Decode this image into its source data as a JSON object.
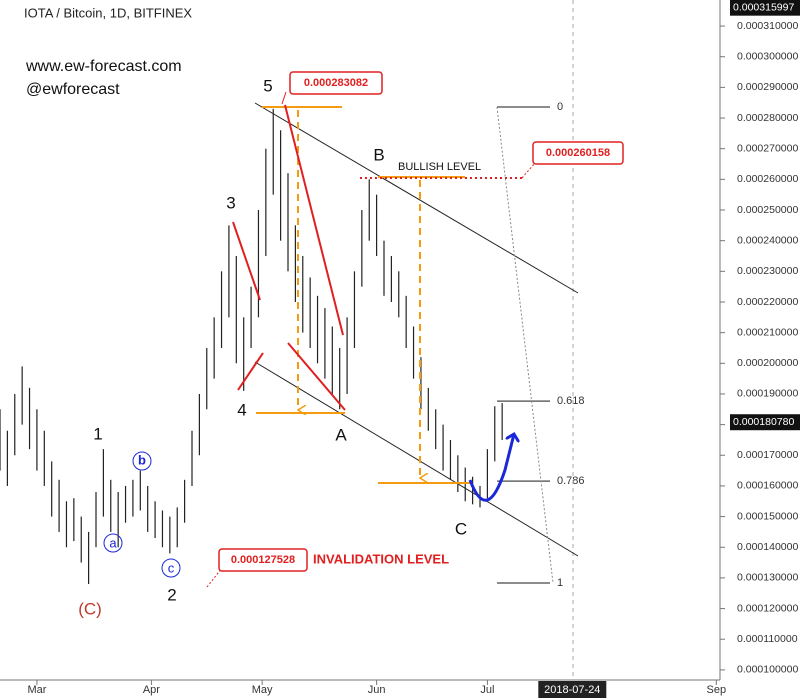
{
  "chart_data": {
    "type": "ohlc",
    "title": "IOTA / Bitcoin, 1D, BITFINEX",
    "x": [
      -10,
      -8,
      -6,
      -4,
      -2,
      0,
      2,
      4,
      6,
      8,
      10,
      12,
      14,
      16,
      18,
      20,
      22,
      24,
      26,
      28,
      30,
      32,
      34,
      36,
      38,
      40,
      42,
      44,
      46,
      48,
      50,
      52,
      54,
      56,
      58,
      60,
      62,
      64,
      66,
      68,
      70,
      72,
      74,
      76,
      78,
      80,
      82,
      84,
      86,
      88,
      90,
      92,
      94,
      96,
      98,
      100,
      102,
      104,
      106,
      108,
      110,
      112,
      114,
      116,
      118,
      120,
      122,
      124,
      126
    ],
    "high": [
      0.000185,
      0.000178,
      0.00019,
      0.000199,
      0.000192,
      0.000185,
      0.000178,
      0.000168,
      0.000162,
      0.000155,
      0.000156,
      0.00015,
      0.000145,
      0.000158,
      0.000172,
      0.000162,
      0.000158,
      0.00016,
      0.000162,
      0.000165,
      0.00016,
      0.000155,
      0.000152,
      0.00015,
      0.000153,
      0.000162,
      0.000178,
      0.00019,
      0.000205,
      0.000215,
      0.00023,
      0.000245,
      0.000235,
      0.000215,
      0.000225,
      0.00025,
      0.00027,
      0.000283,
      0.000276,
      0.000262,
      0.000245,
      0.000235,
      0.000228,
      0.000222,
      0.000218,
      0.000212,
      0.000205,
      0.000215,
      0.00023,
      0.00025,
      0.00026,
      0.000255,
      0.00024,
      0.000235,
      0.00023,
      0.000222,
      0.000212,
      0.000202,
      0.000192,
      0.000185,
      0.00018,
      0.000175,
      0.00017,
      0.000166,
      0.000163,
      0.00016,
      0.000172,
      0.000186,
      0.000187
    ],
    "low": [
      0.000165,
      0.00016,
      0.00017,
      0.00018,
      0.000172,
      0.000165,
      0.00016,
      0.00015,
      0.000145,
      0.00014,
      0.000142,
      0.000135,
      0.000128,
      0.00014,
      0.00015,
      0.000145,
      0.00014,
      0.000148,
      0.00015,
      0.000152,
      0.000145,
      0.000143,
      0.00014,
      0.000138,
      0.00014,
      0.000148,
      0.00016,
      0.00017,
      0.000185,
      0.000195,
      0.000205,
      0.000215,
      0.0002,
      0.000191,
      0.000205,
      0.000215,
      0.000235,
      0.000255,
      0.00024,
      0.00023,
      0.00022,
      0.00021,
      0.000205,
      0.0002,
      0.000195,
      0.00019,
      0.000185,
      0.00019,
      0.000205,
      0.000225,
      0.00024,
      0.000235,
      0.000222,
      0.00022,
      0.000215,
      0.000205,
      0.000195,
      0.000185,
      0.000178,
      0.000172,
      0.000165,
      0.000162,
      0.000158,
      0.000155,
      0.000154,
      0.000153,
      0.000156,
      0.000168,
      0.000175
    ],
    "color": "#222222",
    "xlim": [
      -10,
      185
    ],
    "xticks": [
      {
        "value": 0,
        "label": "Mar"
      },
      {
        "value": 31,
        "label": "Apr"
      },
      {
        "value": 61,
        "label": "May"
      },
      {
        "value": 92,
        "label": "Jun"
      },
      {
        "value": 122,
        "label": "Jul"
      },
      {
        "value": 184,
        "label": "Sep"
      }
    ],
    "ylim": [
      9.67e-05,
      0.0003185
    ],
    "yticks": [
      {
        "value": 0.0001,
        "label": "0.000100000"
      },
      {
        "value": 0.00011,
        "label": "0.000110000"
      },
      {
        "value": 0.00012,
        "label": "0.000120000"
      },
      {
        "value": 0.00013,
        "label": "0.000130000"
      },
      {
        "value": 0.00014,
        "label": "0.000140000"
      },
      {
        "value": 0.00015,
        "label": "0.000150000"
      },
      {
        "value": 0.00016,
        "label": "0.000160000"
      },
      {
        "value": 0.00017,
        "label": "0.000170000"
      },
      {
        "value": 0.00018,
        "label": "0.000180000"
      },
      {
        "value": 0.00019,
        "label": "0.000190000"
      },
      {
        "value": 0.0002,
        "label": "0.000200000"
      },
      {
        "value": 0.00021,
        "label": "0.000210000"
      },
      {
        "value": 0.00022,
        "label": "0.000220000"
      },
      {
        "value": 0.00023,
        "label": "0.000230000"
      },
      {
        "value": 0.00024,
        "label": "0.000240000"
      },
      {
        "value": 0.00025,
        "label": "0.000250000"
      },
      {
        "value": 0.00026,
        "label": "0.000260000"
      },
      {
        "value": 0.00027,
        "label": "0.000270000"
      },
      {
        "value": 0.00028,
        "label": "0.000280000"
      },
      {
        "value": 0.00029,
        "label": "0.000290000"
      },
      {
        "value": 0.0003,
        "label": "0.000300000"
      },
      {
        "value": 0.00031,
        "label": "0.000310000"
      }
    ],
    "price_markers": [
      {
        "value": 0.000315997,
        "label": "0.000315997"
      },
      {
        "value": 0.00018078,
        "label": "0.000180780"
      }
    ],
    "date_marker": {
      "value": 145,
      "label": "2018-07-24"
    },
    "fib_levels": [
      0,
      0.618,
      0.786,
      1
    ],
    "annotations": {
      "site": "www.ew-forecast.com",
      "handle": "@ewforecast",
      "waves": [
        "5",
        "3",
        "4",
        "1",
        "2",
        "(C)",
        "A",
        "B",
        "C"
      ],
      "subwaves": [
        "a",
        "b",
        "c"
      ],
      "levels": [
        "0.000283082",
        "0.000260158",
        "0.000127528"
      ],
      "bullish": "BULLISH LEVEL",
      "invalidation": "INVALIDATION LEVEL"
    }
  }
}
